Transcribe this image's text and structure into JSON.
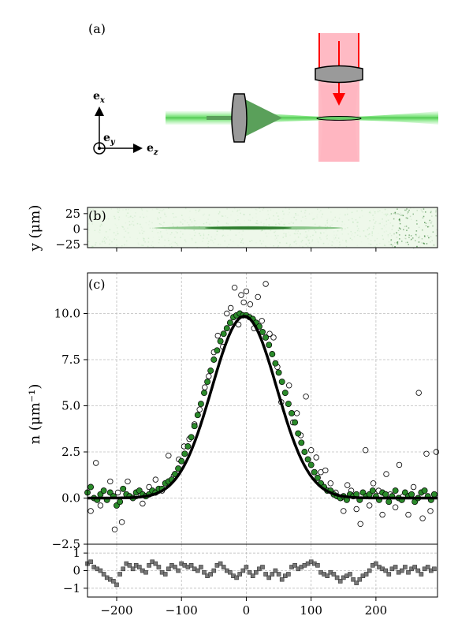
{
  "panels": {
    "a": {
      "label": "(a)"
    },
    "b": {
      "label": "(b)"
    },
    "c": {
      "label": "(c)"
    }
  },
  "axes_diagram": {
    "ex": "e",
    "ex_sub": "x",
    "ey": "e",
    "ey_sub": "y",
    "ez": "e",
    "ez_sub": "z"
  },
  "colors": {
    "green_beam": "#8ee88e",
    "green_dark": "#2e8b2e",
    "red_beam": "#ff0000",
    "red_zone": "#ffb6c1",
    "lens_fill": "#9a9a9a",
    "fit_line": "#000000",
    "fill_green": "#2a8a2a"
  },
  "panel_b": {
    "ylabel": "y (μm)",
    "yticks": [
      "25",
      "0",
      "−25"
    ],
    "ytick_values": [
      25,
      0,
      -25
    ],
    "ylim": [
      -30,
      35
    ]
  },
  "chart_data": {
    "type": "scatter",
    "xlim": [
      -245,
      295
    ],
    "ylim": [
      -2.5,
      12.2
    ],
    "ylabel": "n (μm⁻¹)",
    "xticks": [
      -200,
      -100,
      0,
      100,
      200
    ],
    "xtick_labels": [
      "−200",
      "−100",
      "0",
      "100",
      "200"
    ],
    "yticks": [
      -2.5,
      0.0,
      2.5,
      5.0,
      7.5,
      10.0
    ],
    "ytick_labels": [
      "−2.5",
      "0.0",
      "2.5",
      "5.0",
      "7.5",
      "10.0"
    ],
    "grid": true,
    "fit": {
      "amplitude": 9.85,
      "center": -3,
      "sigma": 50,
      "shape": "gaussian"
    },
    "series": [
      {
        "marker": "filled-circle",
        "points": [
          [
            -245,
            0.3
          ],
          [
            -240,
            0.6
          ],
          [
            -235,
            0.0
          ],
          [
            -230,
            -0.1
          ],
          [
            -225,
            0.2
          ],
          [
            -220,
            0.4
          ],
          [
            -215,
            -0.1
          ],
          [
            -210,
            0.3
          ],
          [
            -205,
            0.1
          ],
          [
            -200,
            -0.4
          ],
          [
            -195,
            -0.2
          ],
          [
            -190,
            0.5
          ],
          [
            -185,
            0.2
          ],
          [
            -180,
            0.1
          ],
          [
            -175,
            0.0
          ],
          [
            -170,
            0.3
          ],
          [
            -165,
            0.4
          ],
          [
            -160,
            0.2
          ],
          [
            -155,
            0.1
          ],
          [
            -150,
            0.2
          ],
          [
            -145,
            0.4
          ],
          [
            -140,
            0.3
          ],
          [
            -135,
            0.5
          ],
          [
            -130,
            0.5
          ],
          [
            -125,
            0.8
          ],
          [
            -120,
            0.9
          ],
          [
            -115,
            1.0
          ],
          [
            -110,
            1.3
          ],
          [
            -105,
            1.6
          ],
          [
            -100,
            2.0
          ],
          [
            -95,
            2.4
          ],
          [
            -90,
            2.8
          ],
          [
            -85,
            3.3
          ],
          [
            -80,
            3.9
          ],
          [
            -75,
            4.5
          ],
          [
            -70,
            5.1
          ],
          [
            -65,
            5.7
          ],
          [
            -60,
            6.3
          ],
          [
            -55,
            6.9
          ],
          [
            -50,
            7.5
          ],
          [
            -45,
            8.0
          ],
          [
            -40,
            8.5
          ],
          [
            -35,
            8.9
          ],
          [
            -30,
            9.2
          ],
          [
            -25,
            9.5
          ],
          [
            -20,
            9.8
          ],
          [
            -15,
            9.9
          ],
          [
            -10,
            10.0
          ],
          [
            -5,
            9.9
          ],
          [
            0,
            9.9
          ],
          [
            5,
            9.8
          ],
          [
            10,
            9.7
          ],
          [
            15,
            9.5
          ],
          [
            20,
            9.3
          ],
          [
            25,
            9.0
          ],
          [
            30,
            8.7
          ],
          [
            35,
            8.3
          ],
          [
            40,
            7.8
          ],
          [
            45,
            7.3
          ],
          [
            50,
            6.8
          ],
          [
            55,
            6.3
          ],
          [
            60,
            5.7
          ],
          [
            65,
            5.1
          ],
          [
            70,
            4.6
          ],
          [
            75,
            4.1
          ],
          [
            80,
            3.5
          ],
          [
            85,
            3.0
          ],
          [
            90,
            2.5
          ],
          [
            95,
            2.1
          ],
          [
            100,
            1.8
          ],
          [
            105,
            1.4
          ],
          [
            110,
            1.1
          ],
          [
            115,
            0.8
          ],
          [
            120,
            0.6
          ],
          [
            125,
            0.4
          ],
          [
            130,
            0.4
          ],
          [
            135,
            0.2
          ],
          [
            140,
            0.1
          ],
          [
            145,
            0.0
          ],
          [
            150,
            0.1
          ],
          [
            155,
            -0.1
          ],
          [
            160,
            0.2
          ],
          [
            165,
            0.1
          ],
          [
            170,
            0.2
          ],
          [
            175,
            -0.1
          ],
          [
            180,
            0.3
          ],
          [
            185,
            0.1
          ],
          [
            190,
            0.2
          ],
          [
            195,
            0.4
          ],
          [
            200,
            0.1
          ],
          [
            205,
            -0.1
          ],
          [
            210,
            0.3
          ],
          [
            215,
            0.2
          ],
          [
            220,
            -0.2
          ],
          [
            225,
            0.1
          ],
          [
            230,
            0.4
          ],
          [
            235,
            0.0
          ],
          [
            240,
            -0.1
          ],
          [
            245,
            0.3
          ],
          [
            250,
            0.1
          ],
          [
            255,
            0.2
          ],
          [
            260,
            -0.2
          ],
          [
            265,
            0.0
          ],
          [
            270,
            0.3
          ],
          [
            275,
            0.4
          ],
          [
            280,
            0.1
          ],
          [
            285,
            -0.1
          ],
          [
            290,
            0.2
          ]
        ]
      },
      {
        "marker": "open-circle",
        "points": [
          [
            -240,
            -0.7
          ],
          [
            -232,
            1.9
          ],
          [
            -225,
            -0.4
          ],
          [
            -210,
            0.9
          ],
          [
            -203,
            -1.7
          ],
          [
            -198,
            0.3
          ],
          [
            -192,
            -1.3
          ],
          [
            -183,
            0.9
          ],
          [
            -170,
            0.1
          ],
          [
            -160,
            -0.3
          ],
          [
            -150,
            0.6
          ],
          [
            -140,
            1.0
          ],
          [
            -130,
            0.4
          ],
          [
            -120,
            2.3
          ],
          [
            -112,
            1.2
          ],
          [
            -104,
            2.1
          ],
          [
            -96,
            2.8
          ],
          [
            -88,
            3.2
          ],
          [
            -80,
            4.0
          ],
          [
            -72,
            4.8
          ],
          [
            -64,
            6.0
          ],
          [
            -58,
            6.6
          ],
          [
            -50,
            7.9
          ],
          [
            -44,
            8.8
          ],
          [
            -36,
            8.2
          ],
          [
            -30,
            10.0
          ],
          [
            -24,
            10.3
          ],
          [
            -18,
            11.4
          ],
          [
            -12,
            9.4
          ],
          [
            -8,
            11.0
          ],
          [
            -4,
            10.6
          ],
          [
            0,
            11.2
          ],
          [
            6,
            10.5
          ],
          [
            12,
            9.2
          ],
          [
            18,
            10.9
          ],
          [
            24,
            9.6
          ],
          [
            30,
            11.6
          ],
          [
            36,
            8.9
          ],
          [
            42,
            8.7
          ],
          [
            48,
            7.1
          ],
          [
            54,
            5.2
          ],
          [
            60,
            5.7
          ],
          [
            66,
            6.1
          ],
          [
            72,
            4.1
          ],
          [
            78,
            4.6
          ],
          [
            84,
            3.4
          ],
          [
            92,
            5.5
          ],
          [
            100,
            2.6
          ],
          [
            108,
            2.2
          ],
          [
            115,
            1.4
          ],
          [
            122,
            1.5
          ],
          [
            130,
            0.8
          ],
          [
            138,
            0.3
          ],
          [
            146,
            0.0
          ],
          [
            150,
            -0.7
          ],
          [
            156,
            0.7
          ],
          [
            162,
            0.4
          ],
          [
            170,
            -0.6
          ],
          [
            176,
            -1.4
          ],
          [
            184,
            2.6
          ],
          [
            190,
            -0.4
          ],
          [
            196,
            0.8
          ],
          [
            204,
            0.4
          ],
          [
            210,
            -0.9
          ],
          [
            216,
            1.3
          ],
          [
            222,
            0.2
          ],
          [
            230,
            -0.5
          ],
          [
            236,
            1.8
          ],
          [
            242,
            0.1
          ],
          [
            250,
            -0.9
          ],
          [
            258,
            0.6
          ],
          [
            266,
            5.7
          ],
          [
            272,
            -1.1
          ],
          [
            278,
            2.4
          ],
          [
            284,
            -0.7
          ],
          [
            290,
            0.2
          ],
          [
            293,
            2.5
          ]
        ]
      }
    ],
    "residuals": {
      "marker": "square",
      "yticks": [
        1,
        0,
        -1
      ],
      "ytick_labels": [
        "1",
        "0",
        "−1"
      ],
      "ylim": [
        -1.5,
        1.5
      ],
      "values": [
        [
          -245,
          0.4
        ],
        [
          -240,
          0.5
        ],
        [
          -235,
          0.2
        ],
        [
          -230,
          0.1
        ],
        [
          -225,
          0.0
        ],
        [
          -220,
          -0.2
        ],
        [
          -215,
          -0.4
        ],
        [
          -210,
          -0.5
        ],
        [
          -205,
          -0.6
        ],
        [
          -200,
          -0.8
        ],
        [
          -195,
          -0.2
        ],
        [
          -190,
          0.1
        ],
        [
          -185,
          0.4
        ],
        [
          -180,
          0.3
        ],
        [
          -175,
          0.1
        ],
        [
          -170,
          0.3
        ],
        [
          -165,
          0.2
        ],
        [
          -160,
          0.0
        ],
        [
          -155,
          -0.1
        ],
        [
          -150,
          0.3
        ],
        [
          -145,
          0.5
        ],
        [
          -140,
          0.4
        ],
        [
          -135,
          0.2
        ],
        [
          -130,
          -0.1
        ],
        [
          -125,
          -0.2
        ],
        [
          -120,
          0.1
        ],
        [
          -115,
          0.3
        ],
        [
          -110,
          0.2
        ],
        [
          -105,
          0.0
        ],
        [
          -100,
          0.4
        ],
        [
          -95,
          0.3
        ],
        [
          -90,
          0.2
        ],
        [
          -85,
          0.3
        ],
        [
          -80,
          0.1
        ],
        [
          -75,
          0.0
        ],
        [
          -70,
          0.2
        ],
        [
          -65,
          -0.1
        ],
        [
          -60,
          -0.3
        ],
        [
          -55,
          -0.2
        ],
        [
          -50,
          0.0
        ],
        [
          -45,
          0.3
        ],
        [
          -40,
          0.4
        ],
        [
          -35,
          0.2
        ],
        [
          -30,
          0.0
        ],
        [
          -25,
          -0.1
        ],
        [
          -20,
          -0.3
        ],
        [
          -15,
          -0.4
        ],
        [
          -10,
          -0.2
        ],
        [
          -5,
          0.0
        ],
        [
          0,
          0.2
        ],
        [
          5,
          -0.1
        ],
        [
          10,
          -0.3
        ],
        [
          15,
          -0.1
        ],
        [
          20,
          0.1
        ],
        [
          25,
          0.2
        ],
        [
          30,
          -0.2
        ],
        [
          35,
          -0.4
        ],
        [
          40,
          -0.2
        ],
        [
          45,
          0.0
        ],
        [
          50,
          -0.2
        ],
        [
          55,
          -0.5
        ],
        [
          60,
          -0.3
        ],
        [
          65,
          -0.2
        ],
        [
          70,
          0.2
        ],
        [
          75,
          0.3
        ],
        [
          80,
          0.1
        ],
        [
          85,
          0.2
        ],
        [
          90,
          0.3
        ],
        [
          95,
          0.4
        ],
        [
          100,
          0.5
        ],
        [
          105,
          0.4
        ],
        [
          110,
          0.3
        ],
        [
          115,
          -0.1
        ],
        [
          120,
          -0.2
        ],
        [
          125,
          -0.3
        ],
        [
          130,
          -0.1
        ],
        [
          135,
          -0.2
        ],
        [
          140,
          -0.4
        ],
        [
          145,
          -0.6
        ],
        [
          150,
          -0.4
        ],
        [
          155,
          -0.3
        ],
        [
          160,
          -0.2
        ],
        [
          165,
          -0.5
        ],
        [
          170,
          -0.7
        ],
        [
          175,
          -0.5
        ],
        [
          180,
          -0.3
        ],
        [
          185,
          -0.2
        ],
        [
          190,
          0.0
        ],
        [
          195,
          0.3
        ],
        [
          200,
          0.4
        ],
        [
          205,
          0.2
        ],
        [
          210,
          0.1
        ],
        [
          215,
          0.0
        ],
        [
          220,
          -0.2
        ],
        [
          225,
          0.1
        ],
        [
          230,
          0.2
        ],
        [
          235,
          -0.1
        ],
        [
          240,
          0.0
        ],
        [
          245,
          0.2
        ],
        [
          250,
          -0.1
        ],
        [
          255,
          0.1
        ],
        [
          260,
          0.2
        ],
        [
          265,
          0.0
        ],
        [
          270,
          -0.2
        ],
        [
          275,
          0.1
        ],
        [
          280,
          0.2
        ],
        [
          285,
          0.0
        ],
        [
          290,
          0.1
        ]
      ]
    }
  }
}
